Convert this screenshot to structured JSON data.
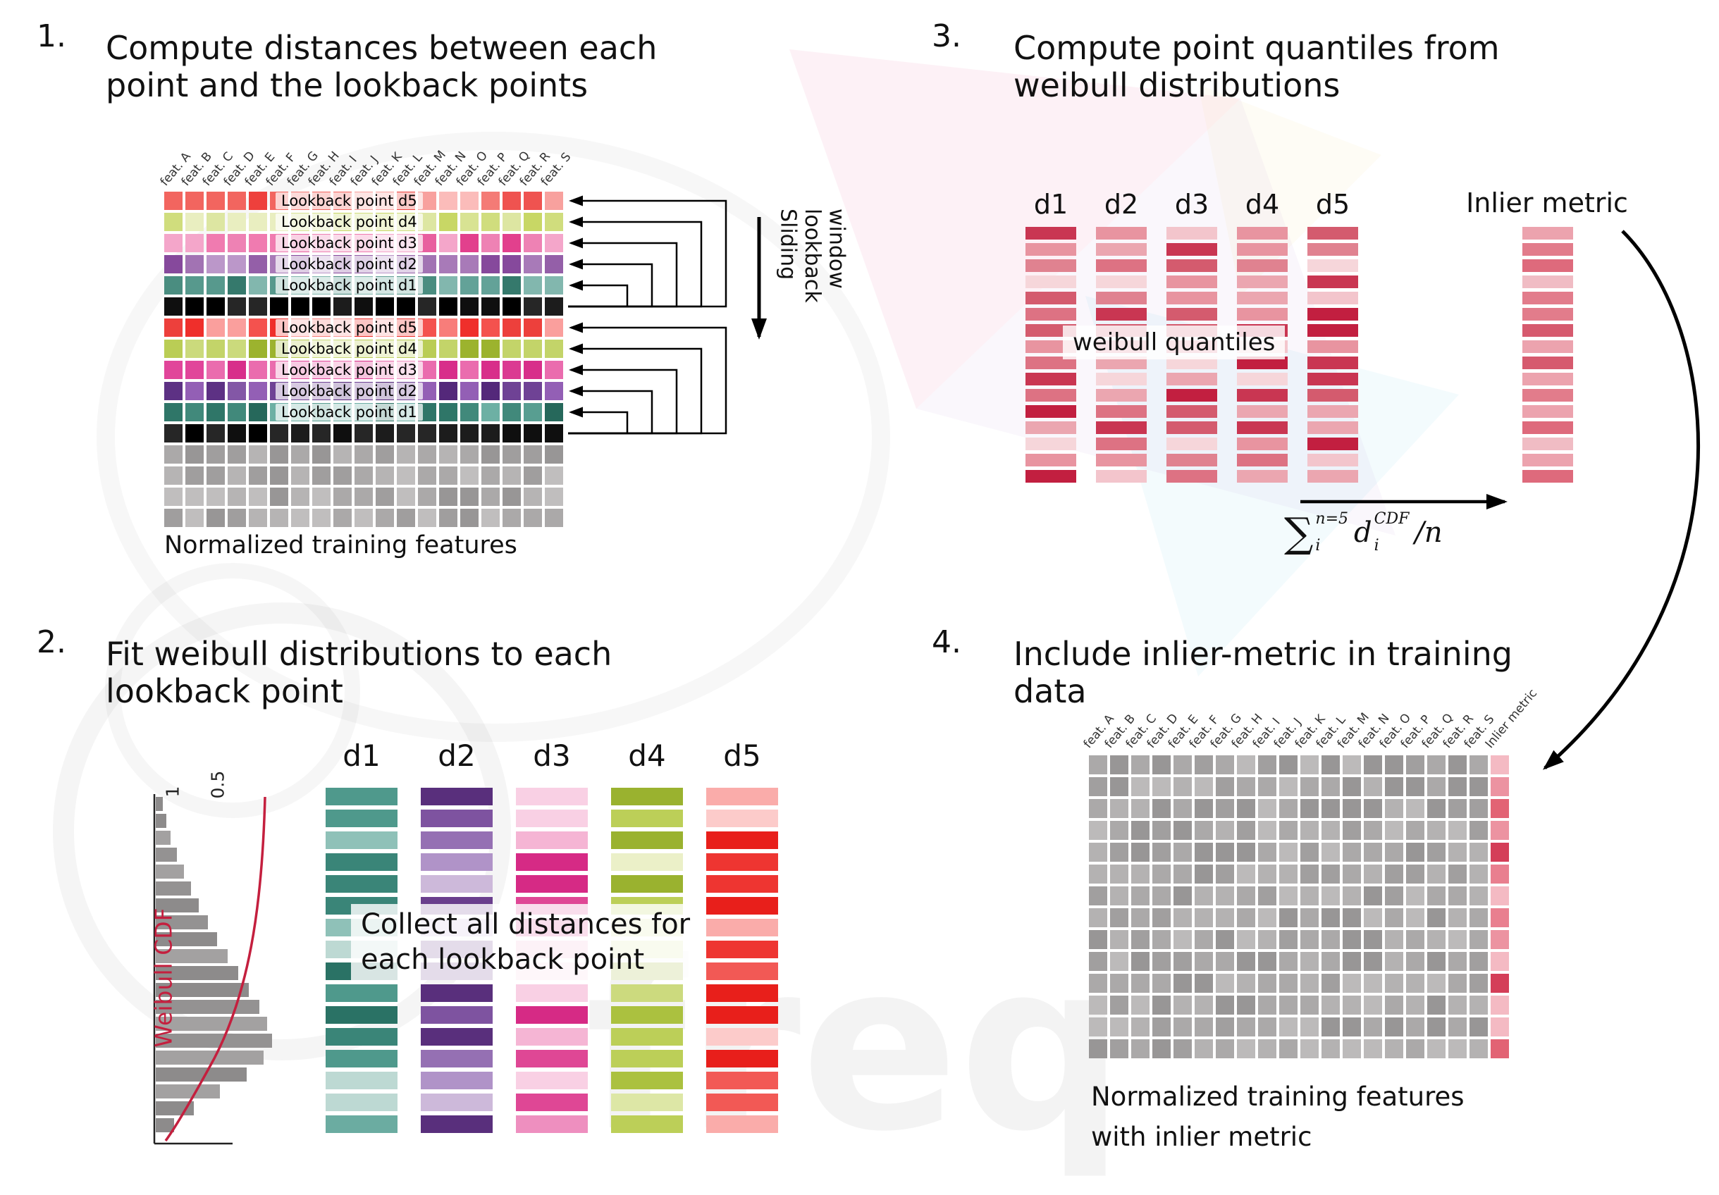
{
  "watermark": {
    "text": "freq"
  },
  "panel1": {
    "step": "1.",
    "title1": "Compute distances between each",
    "title2": "point and the lookback points",
    "feature_columns": [
      "feat. A",
      "feat. B",
      "feat. C",
      "feat. D",
      "feat. E",
      "feat. F",
      "feat. G",
      "feat. H",
      "feat. I",
      "feat. J",
      "feat. K",
      "feat. L",
      "feat. M",
      "feat. N",
      "feat. O",
      "feat. P",
      "feat. Q",
      "feat. R",
      "feat. S"
    ],
    "rows": [
      {
        "label": "Lookback point d5",
        "palette": [
          "#f47b76",
          "#ef5350",
          "#f8a19e",
          "#f2655f",
          "#fbbcba",
          "#ee403c"
        ]
      },
      {
        "label": "Lookback point d4",
        "palette": [
          "#dde6a2",
          "#d0dd7d",
          "#e9eec0",
          "#c8d765",
          "#d8e393"
        ]
      },
      {
        "label": "Lookback point d3",
        "palette": [
          "#ee82b4",
          "#e85f9f",
          "#f4a6ca",
          "#e2408d",
          "#f07bb0"
        ]
      },
      {
        "label": "Lookback point d2",
        "palette": [
          "#a87ab8",
          "#945fa8",
          "#bb97c9",
          "#86499c",
          "#a273b3"
        ]
      },
      {
        "label": "Lookback point d1",
        "palette": [
          "#63a298",
          "#4a8d80",
          "#82b7ae",
          "#35796c",
          "#57998d"
        ]
      },
      {
        "palette": [
          "#0f0f0f",
          "#1c1c1c",
          "#000000",
          "#262626"
        ]
      },
      {
        "label": "Lookback point d5",
        "palette": [
          "#f4524e",
          "#ef2f2b",
          "#f87d7a",
          "#fa9f9d",
          "#ed403c"
        ]
      },
      {
        "label": "Lookback point d4",
        "palette": [
          "#bacd55",
          "#a9bf3c",
          "#cbda7c",
          "#9cb32e",
          "#c3d469"
        ]
      },
      {
        "label": "Lookback point d3",
        "palette": [
          "#e1459a",
          "#d82e8a",
          "#ea6cae",
          "#f092c3",
          "#db3a92"
        ]
      },
      {
        "label": "Lookback point d2",
        "palette": [
          "#6f4295",
          "#5d3184",
          "#8357a6",
          "#935fb5",
          "#54287a"
        ]
      },
      {
        "label": "Lookback point d1",
        "palette": [
          "#41897b",
          "#2f7668",
          "#589e91",
          "#6db0a4",
          "#26685b"
        ]
      },
      {
        "palette": [
          "#0f0f0f",
          "#1c1c1c",
          "#000000",
          "#262626"
        ]
      },
      {
        "palette": [
          "#aba9a9",
          "#b6b4b4",
          "#a09e9e",
          "#c0bebe",
          "#989696"
        ]
      },
      {
        "palette": [
          "#aba9a9",
          "#b6b4b4",
          "#a09e9e",
          "#c0bebe",
          "#989696"
        ]
      },
      {
        "palette": [
          "#aba9a9",
          "#b6b4b4",
          "#a09e9e",
          "#c0bebe",
          "#989696"
        ]
      },
      {
        "palette": [
          "#aba9a9",
          "#b6b4b4",
          "#a09e9e",
          "#c0bebe",
          "#989696"
        ]
      }
    ],
    "caption": "Normalized training features",
    "sliding_label": "Sliding lookback window"
  },
  "panel2": {
    "step": "2.",
    "title1": "Fit weibull distributions to each",
    "title2": "lookback point",
    "columns": [
      {
        "label": "d1",
        "palette": [
          "#4f998c",
          "#3a8578",
          "#6baca1",
          "#8fc1b8",
          "#2a7265",
          "#bdd9d3"
        ]
      },
      {
        "label": "d2",
        "palette": [
          "#7e53a0",
          "#6a3f8d",
          "#9570b3",
          "#b093c8",
          "#592f7c",
          "#cdb9da"
        ]
      },
      {
        "label": "d3",
        "palette": [
          "#e668a7",
          "#df4795",
          "#ee8fbf",
          "#f5b5d4",
          "#d62a85",
          "#f9d0e4"
        ]
      },
      {
        "label": "d4",
        "palette": [
          "#bccf58",
          "#abc13f",
          "#ccda7e",
          "#dde7a6",
          "#9ab22f",
          "#ebf0c8"
        ]
      },
      {
        "label": "d5",
        "palette": [
          "#f25955",
          "#ee3531",
          "#f68481",
          "#faacaa",
          "#e81f1b",
          "#fccbca"
        ]
      }
    ],
    "note1": "Collect all distances for",
    "note2": "each lookback point",
    "cdf_plot": {
      "label": "Weibull CDF",
      "ticks": [
        "1",
        "0.5"
      ],
      "hist": [
        0.06,
        0.09,
        0.13,
        0.18,
        0.24,
        0.3,
        0.37,
        0.45,
        0.53,
        0.62,
        0.71,
        0.8,
        0.89,
        0.96,
        1.0,
        0.93,
        0.78,
        0.55,
        0.33,
        0.16
      ]
    }
  },
  "panel3": {
    "step": "3.",
    "title1": "Compute point quantiles from",
    "title2": "weibull distributions",
    "columns": [
      "d1",
      "d2",
      "d3",
      "d4",
      "d5"
    ],
    "palette": [
      "#e08290",
      "#d45b6e",
      "#eba6b0",
      "#f3c5cc",
      "#c93652",
      "#dd7283",
      "#f6d6da",
      "#c21f40",
      "#e894a0"
    ],
    "overlay": "weibull quantiles",
    "inlier_label": "Inlier metric",
    "inlier_palette": [
      "#e27c8b",
      "#d65a6e",
      "#eca3ae",
      "#c93652",
      "#f0bcc4",
      "#de6a7c"
    ],
    "formula": {
      "sum": "∑",
      "sum_sup": "n=5",
      "sum_sub": "i",
      "var": "d",
      "var_sup": "CDF",
      "var_sub": "i",
      "tail": "/n"
    }
  },
  "panel4": {
    "step": "4.",
    "title1": "Include inlier-metric in training",
    "title2": "data",
    "feature_columns": [
      "feat. A",
      "feat. B",
      "feat. C",
      "feat. D",
      "feat. E",
      "feat. F",
      "feat. G",
      "feat. H",
      "feat. I",
      "feat. J",
      "feat. K",
      "feat. L",
      "feat. M",
      "feat. N",
      "feat. O",
      "feat. P",
      "feat. Q",
      "feat. R",
      "feat. S"
    ],
    "inlier_column": "Inlier metric",
    "gray_palette": [
      "#aba9a9",
      "#b4b2b2",
      "#a19f9f",
      "#bcbaba",
      "#989696"
    ],
    "inlier_palette": [
      "#e26374",
      "#d43e58",
      "#ec93a1",
      "#f4bac3",
      "#c72745",
      "#e97f8f"
    ],
    "caption1": "Normalized training features",
    "caption2": "with inlier metric"
  }
}
